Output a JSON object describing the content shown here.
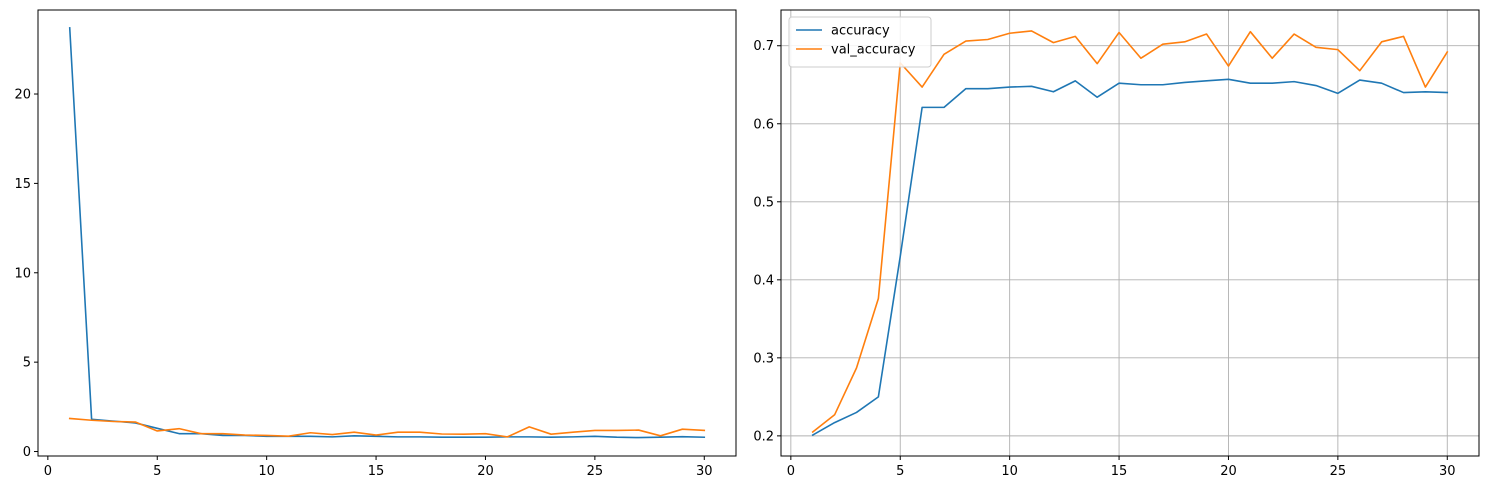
{
  "colors": {
    "blue": "#1f77b4",
    "orange": "#ff7f0e",
    "grid": "#b0b0b0"
  },
  "chart_data": [
    {
      "type": "line",
      "title": "",
      "xlabel": "",
      "ylabel": "",
      "xlim": [
        -0.45,
        31.45
      ],
      "ylim": [
        -0.25,
        24.7
      ],
      "xticks": [
        0,
        5,
        10,
        15,
        20,
        25,
        30
      ],
      "yticks": [
        0,
        5,
        10,
        15,
        20
      ],
      "grid": false,
      "legend": null,
      "x": [
        1,
        2,
        3,
        4,
        5,
        6,
        7,
        8,
        9,
        10,
        11,
        12,
        13,
        14,
        15,
        16,
        17,
        18,
        19,
        20,
        21,
        22,
        23,
        24,
        25,
        26,
        27,
        28,
        29,
        30
      ],
      "series": [
        {
          "color": "#1f77b4",
          "values": [
            23.7,
            1.8,
            1.7,
            1.6,
            1.3,
            1.0,
            1.0,
            0.9,
            0.9,
            0.85,
            0.85,
            0.85,
            0.82,
            0.88,
            0.85,
            0.82,
            0.82,
            0.8,
            0.8,
            0.8,
            0.82,
            0.82,
            0.8,
            0.82,
            0.85,
            0.8,
            0.78,
            0.8,
            0.83,
            0.8
          ]
        },
        {
          "color": "#ff7f0e",
          "values": [
            1.85,
            1.75,
            1.68,
            1.65,
            1.15,
            1.28,
            1.0,
            1.0,
            0.92,
            0.9,
            0.86,
            1.05,
            0.95,
            1.08,
            0.92,
            1.08,
            1.08,
            0.98,
            0.97,
            1.0,
            0.82,
            1.38,
            0.97,
            1.08,
            1.18,
            1.18,
            1.2,
            0.88,
            1.25,
            1.18
          ]
        }
      ]
    },
    {
      "type": "line",
      "title": "",
      "xlabel": "",
      "ylabel": "",
      "xlim": [
        -0.45,
        31.45
      ],
      "ylim": [
        0.1742,
        0.7458
      ],
      "xticks": [
        0,
        5,
        10,
        15,
        20,
        25,
        30
      ],
      "yticks": [
        0.2,
        0.3,
        0.4,
        0.5,
        0.6,
        0.7
      ],
      "grid": true,
      "legend": "upper left",
      "x": [
        1,
        2,
        3,
        4,
        5,
        6,
        7,
        8,
        9,
        10,
        11,
        12,
        13,
        14,
        15,
        16,
        17,
        18,
        19,
        20,
        21,
        22,
        23,
        24,
        25,
        26,
        27,
        28,
        29,
        30
      ],
      "series": [
        {
          "name": "accuracy",
          "color": "#1f77b4",
          "values": [
            0.201,
            0.217,
            0.23,
            0.25,
            0.43,
            0.621,
            0.621,
            0.645,
            0.645,
            0.647,
            0.648,
            0.641,
            0.655,
            0.634,
            0.652,
            0.65,
            0.65,
            0.653,
            0.655,
            0.657,
            0.652,
            0.652,
            0.654,
            0.649,
            0.639,
            0.656,
            0.652,
            0.64,
            0.641,
            0.64
          ]
        },
        {
          "name": "val_accuracy",
          "color": "#ff7f0e",
          "values": [
            0.205,
            0.227,
            0.287,
            0.376,
            0.678,
            0.647,
            0.689,
            0.706,
            0.708,
            0.716,
            0.719,
            0.704,
            0.712,
            0.677,
            0.717,
            0.684,
            0.702,
            0.705,
            0.715,
            0.674,
            0.718,
            0.684,
            0.715,
            0.698,
            0.695,
            0.668,
            0.705,
            0.712,
            0.647,
            0.692
          ]
        }
      ]
    }
  ]
}
